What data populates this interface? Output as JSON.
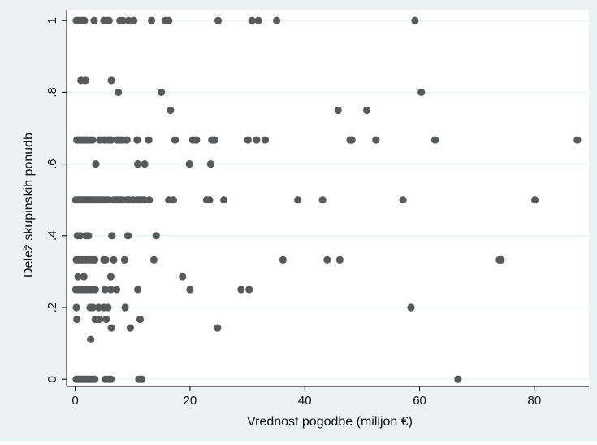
{
  "colors": {
    "outer_background": "#eaf2f3",
    "plot_background": "#ffffff",
    "gridline": "#eaf2f3",
    "marker": "#58595b",
    "axis": "#000000"
  },
  "chart_data": {
    "type": "scatter",
    "title": "",
    "xlabel": "Vrednost pogodbe (milijon €)",
    "ylabel": "Delež skupinskih ponudb",
    "xlim": [
      -1.5,
      89.5
    ],
    "ylim": [
      -0.02,
      1.03
    ],
    "x_ticks": [
      0,
      20,
      40,
      60,
      80
    ],
    "x_tick_labels": [
      "0",
      "20",
      "40",
      "60",
      "80"
    ],
    "y_ticks": [
      0,
      0.2,
      0.4,
      0.6,
      0.8,
      1
    ],
    "y_tick_labels": [
      "0",
      ".2",
      ".4",
      ".6",
      ".8",
      "1"
    ],
    "grid": "horizontal",
    "legend": "none",
    "points": [
      [
        0.2,
        1
      ],
      [
        0.5,
        1
      ],
      [
        0.8,
        1
      ],
      [
        1.2,
        1
      ],
      [
        1.6,
        1
      ],
      [
        3.3,
        1
      ],
      [
        5,
        1
      ],
      [
        5.6,
        1
      ],
      [
        5.9,
        1
      ],
      [
        7.8,
        1
      ],
      [
        8.3,
        1
      ],
      [
        9.3,
        1
      ],
      [
        10.2,
        1
      ],
      [
        13.3,
        1
      ],
      [
        15.7,
        1
      ],
      [
        16.3,
        1
      ],
      [
        24.9,
        1
      ],
      [
        30.8,
        1
      ],
      [
        31.9,
        1
      ],
      [
        35.1,
        1
      ],
      [
        59.2,
        1
      ],
      [
        1,
        0.833
      ],
      [
        1.8,
        0.833
      ],
      [
        6.3,
        0.833
      ],
      [
        7.5,
        0.8
      ],
      [
        15,
        0.8
      ],
      [
        60.3,
        0.8
      ],
      [
        16.6,
        0.75
      ],
      [
        45.8,
        0.75
      ],
      [
        50.8,
        0.75
      ],
      [
        0.3,
        0.667
      ],
      [
        0.6,
        0.667
      ],
      [
        1,
        0.667
      ],
      [
        1.5,
        0.667
      ],
      [
        2,
        0.667
      ],
      [
        2.5,
        0.667
      ],
      [
        3,
        0.667
      ],
      [
        4.3,
        0.667
      ],
      [
        5.1,
        0.667
      ],
      [
        5.8,
        0.667
      ],
      [
        6.3,
        0.667
      ],
      [
        7.3,
        0.667
      ],
      [
        7.8,
        0.667
      ],
      [
        8.3,
        0.667
      ],
      [
        9,
        0.667
      ],
      [
        10.8,
        0.667
      ],
      [
        12.8,
        0.667
      ],
      [
        17.4,
        0.667
      ],
      [
        20.5,
        0.667
      ],
      [
        21.1,
        0.667
      ],
      [
        23.8,
        0.667
      ],
      [
        24.3,
        0.667
      ],
      [
        30.1,
        0.667
      ],
      [
        31.6,
        0.667
      ],
      [
        33.1,
        0.667
      ],
      [
        47.9,
        0.667
      ],
      [
        48.2,
        0.667
      ],
      [
        52.4,
        0.667
      ],
      [
        62.7,
        0.667
      ],
      [
        87.5,
        0.667
      ],
      [
        3.6,
        0.6
      ],
      [
        10.9,
        0.6
      ],
      [
        12.1,
        0.6
      ],
      [
        19.9,
        0.6
      ],
      [
        23.6,
        0.6
      ],
      [
        0.1,
        0.5
      ],
      [
        0.4,
        0.5
      ],
      [
        0.7,
        0.5
      ],
      [
        1,
        0.5
      ],
      [
        1.3,
        0.5
      ],
      [
        1.6,
        0.5
      ],
      [
        2,
        0.5
      ],
      [
        2.3,
        0.5
      ],
      [
        2.6,
        0.5
      ],
      [
        3,
        0.5
      ],
      [
        3.3,
        0.5
      ],
      [
        3.7,
        0.5
      ],
      [
        4.1,
        0.5
      ],
      [
        4.6,
        0.5
      ],
      [
        5,
        0.5
      ],
      [
        5.4,
        0.5
      ],
      [
        5.9,
        0.5
      ],
      [
        6.7,
        0.5
      ],
      [
        7.1,
        0.5
      ],
      [
        7.5,
        0.5
      ],
      [
        7.9,
        0.5
      ],
      [
        8.3,
        0.5
      ],
      [
        9,
        0.5
      ],
      [
        9.4,
        0.5
      ],
      [
        10.1,
        0.5
      ],
      [
        10.8,
        0.5
      ],
      [
        11.2,
        0.5
      ],
      [
        11.6,
        0.5
      ],
      [
        12,
        0.5
      ],
      [
        12.9,
        0.5
      ],
      [
        16.3,
        0.5
      ],
      [
        17.1,
        0.5
      ],
      [
        22.9,
        0.5
      ],
      [
        23.4,
        0.5
      ],
      [
        25.9,
        0.5
      ],
      [
        38.8,
        0.5
      ],
      [
        43.1,
        0.5
      ],
      [
        57.1,
        0.5
      ],
      [
        80.1,
        0.5
      ],
      [
        0.4,
        0.4
      ],
      [
        0.9,
        0.4
      ],
      [
        1.9,
        0.4
      ],
      [
        2.3,
        0.4
      ],
      [
        6.4,
        0.4
      ],
      [
        9.2,
        0.4
      ],
      [
        14.1,
        0.4
      ],
      [
        0.2,
        0.333
      ],
      [
        0.6,
        0.333
      ],
      [
        1,
        0.333
      ],
      [
        1.4,
        0.333
      ],
      [
        1.9,
        0.333
      ],
      [
        2.4,
        0.333
      ],
      [
        2.9,
        0.333
      ],
      [
        3.4,
        0.333
      ],
      [
        5,
        0.333
      ],
      [
        5.3,
        0.333
      ],
      [
        6.7,
        0.333
      ],
      [
        8.6,
        0.333
      ],
      [
        13.7,
        0.333
      ],
      [
        36.2,
        0.333
      ],
      [
        43.9,
        0.333
      ],
      [
        46.1,
        0.333
      ],
      [
        73.9,
        0.333
      ],
      [
        74.2,
        0.333
      ],
      [
        0.5,
        0.286
      ],
      [
        1.5,
        0.286
      ],
      [
        6.2,
        0.286
      ],
      [
        18.7,
        0.286
      ],
      [
        0.1,
        0.25
      ],
      [
        0.5,
        0.25
      ],
      [
        0.9,
        0.25
      ],
      [
        1.4,
        0.25
      ],
      [
        1.9,
        0.25
      ],
      [
        2.4,
        0.25
      ],
      [
        2.9,
        0.25
      ],
      [
        3.5,
        0.25
      ],
      [
        5.2,
        0.25
      ],
      [
        6.2,
        0.25
      ],
      [
        7.2,
        0.25
      ],
      [
        10.9,
        0.25
      ],
      [
        20,
        0.25
      ],
      [
        28.9,
        0.25
      ],
      [
        30.3,
        0.25
      ],
      [
        0.2,
        0.2
      ],
      [
        2.6,
        0.2
      ],
      [
        3.1,
        0.2
      ],
      [
        4.1,
        0.2
      ],
      [
        5,
        0.2
      ],
      [
        5.7,
        0.2
      ],
      [
        8.7,
        0.2
      ],
      [
        58.5,
        0.2
      ],
      [
        0.3,
        0.167
      ],
      [
        3.5,
        0.167
      ],
      [
        4.2,
        0.167
      ],
      [
        5.4,
        0.167
      ],
      [
        11.3,
        0.167
      ],
      [
        6.3,
        0.143
      ],
      [
        9.6,
        0.143
      ],
      [
        24.8,
        0.143
      ],
      [
        2.7,
        0.111
      ],
      [
        0.2,
        0
      ],
      [
        0.5,
        0
      ],
      [
        0.8,
        0
      ],
      [
        1.1,
        0
      ],
      [
        1.4,
        0
      ],
      [
        1.8,
        0
      ],
      [
        2.2,
        0
      ],
      [
        2.6,
        0
      ],
      [
        3,
        0
      ],
      [
        3.4,
        0
      ],
      [
        5.3,
        0
      ],
      [
        5.9,
        0
      ],
      [
        6.2,
        0
      ],
      [
        11.1,
        0
      ],
      [
        11.6,
        0
      ],
      [
        66.7,
        0
      ]
    ]
  }
}
